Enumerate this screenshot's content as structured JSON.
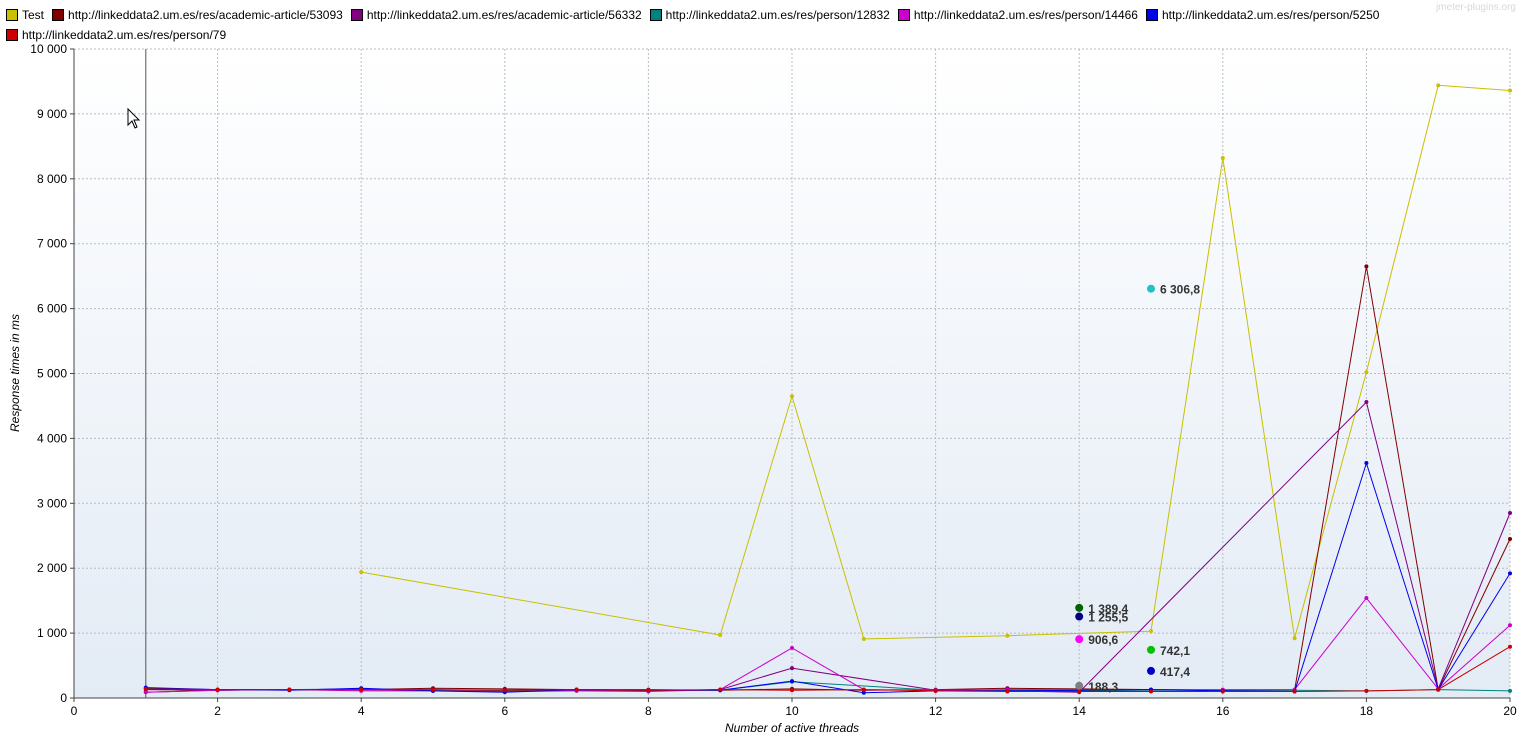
{
  "watermark": "jmeter-plugins.org",
  "chart_data": {
    "type": "line",
    "xlabel": "Number of active threads",
    "ylabel": "Response times in ms",
    "xlim": [
      0,
      20
    ],
    "ylim": [
      0,
      10000
    ],
    "xticks": [
      0,
      2,
      4,
      6,
      8,
      10,
      12,
      14,
      16,
      18,
      20
    ],
    "xtick_labels": [
      "0",
      "2",
      "4",
      "6",
      "8",
      "10",
      "12",
      "14",
      "16",
      "18",
      "20"
    ],
    "yticks": [
      0,
      1000,
      2000,
      3000,
      4000,
      5000,
      6000,
      7000,
      8000,
      9000,
      10000
    ],
    "ytick_labels": [
      "0",
      "1 000",
      "2 000",
      "3 000",
      "4 000",
      "5 000",
      "6 000",
      "7 000",
      "8 000",
      "9 000",
      "10 000"
    ],
    "grid": true,
    "legend_position": "top-left",
    "cursor_x": 1,
    "series": [
      {
        "name": "Test",
        "color": "#c8c000",
        "points": [
          [
            4,
            1940
          ],
          [
            9,
            970
          ],
          [
            10,
            4650
          ],
          [
            11,
            910
          ],
          [
            13,
            960
          ],
          [
            15,
            1030
          ],
          [
            16,
            8320
          ],
          [
            17,
            920
          ],
          [
            18,
            5020
          ],
          [
            19,
            9440
          ],
          [
            20,
            9360
          ]
        ]
      },
      {
        "name": "http://linkeddata2.um.es/res/academic-article/53093",
        "color": "#800000",
        "points": [
          [
            1,
            130
          ],
          [
            2,
            120
          ],
          [
            3,
            130
          ],
          [
            4,
            130
          ],
          [
            5,
            150
          ],
          [
            6,
            140
          ],
          [
            7,
            130
          ],
          [
            8,
            130
          ],
          [
            9,
            120
          ],
          [
            10,
            140
          ],
          [
            11,
            120
          ],
          [
            12,
            130
          ],
          [
            13,
            150
          ],
          [
            14,
            140
          ],
          [
            15,
            130
          ],
          [
            16,
            120
          ],
          [
            17,
            120
          ],
          [
            18,
            6650
          ],
          [
            19,
            130
          ],
          [
            20,
            2450
          ]
        ]
      },
      {
        "name": "http://linkeddata2.um.es/res/academic-article/56332",
        "color": "#800080",
        "points": [
          [
            1,
            90
          ],
          [
            2,
            120
          ],
          [
            3,
            130
          ],
          [
            4,
            130
          ],
          [
            5,
            120
          ],
          [
            6,
            120
          ],
          [
            7,
            120
          ],
          [
            8,
            110
          ],
          [
            9,
            130
          ],
          [
            10,
            460
          ],
          [
            12,
            120
          ],
          [
            13,
            110
          ],
          [
            14,
            90
          ],
          [
            18,
            4560
          ],
          [
            19,
            140
          ],
          [
            20,
            2850
          ]
        ]
      },
      {
        "name": "http://linkeddata2.um.es/res/person/12832",
        "color": "#008080",
        "points": [
          [
            1,
            150
          ],
          [
            2,
            130
          ],
          [
            3,
            130
          ],
          [
            4,
            140
          ],
          [
            5,
            120
          ],
          [
            6,
            110
          ],
          [
            7,
            130
          ],
          [
            8,
            120
          ],
          [
            9,
            120
          ],
          [
            10,
            250
          ],
          [
            12,
            120
          ],
          [
            13,
            120
          ],
          [
            14,
            110
          ],
          [
            15,
            120
          ],
          [
            16,
            120
          ],
          [
            17,
            120
          ],
          [
            18,
            110
          ],
          [
            19,
            130
          ],
          [
            20,
            110
          ]
        ]
      },
      {
        "name": "http://linkeddata2.um.es/res/person/14466",
        "color": "#cc00cc",
        "points": [
          [
            1,
            90
          ],
          [
            2,
            120
          ],
          [
            3,
            130
          ],
          [
            4,
            110
          ],
          [
            5,
            110
          ],
          [
            6,
            100
          ],
          [
            7,
            110
          ],
          [
            8,
            100
          ],
          [
            9,
            130
          ],
          [
            10,
            770
          ],
          [
            11,
            130
          ],
          [
            12,
            120
          ],
          [
            13,
            130
          ],
          [
            14,
            130
          ],
          [
            15,
            130
          ],
          [
            16,
            130
          ],
          [
            17,
            130
          ],
          [
            18,
            1540
          ],
          [
            19,
            140
          ],
          [
            20,
            1120
          ]
        ]
      },
      {
        "name": "http://linkeddata2.um.es/res/person/5250",
        "color": "#0000ee",
        "points": [
          [
            1,
            160
          ],
          [
            2,
            130
          ],
          [
            3,
            120
          ],
          [
            4,
            150
          ],
          [
            5,
            110
          ],
          [
            6,
            90
          ],
          [
            7,
            130
          ],
          [
            8,
            120
          ],
          [
            9,
            120
          ],
          [
            10,
            260
          ],
          [
            11,
            80
          ],
          [
            12,
            110
          ],
          [
            13,
            110
          ],
          [
            14,
            120
          ],
          [
            15,
            130
          ],
          [
            16,
            110
          ],
          [
            17,
            100
          ],
          [
            18,
            3620
          ],
          [
            19,
            130
          ],
          [
            20,
            1920
          ]
        ]
      },
      {
        "name": "http://linkeddata2.um.es/res/person/79",
        "color": "#cc0000",
        "points": [
          [
            1,
            140
          ],
          [
            2,
            130
          ],
          [
            3,
            130
          ],
          [
            4,
            130
          ],
          [
            5,
            130
          ],
          [
            6,
            120
          ],
          [
            7,
            130
          ],
          [
            8,
            120
          ],
          [
            9,
            130
          ],
          [
            10,
            120
          ],
          [
            11,
            130
          ],
          [
            12,
            110
          ],
          [
            13,
            100
          ],
          [
            14,
            100
          ],
          [
            15,
            100
          ],
          [
            16,
            100
          ],
          [
            17,
            100
          ],
          [
            18,
            110
          ],
          [
            19,
            130
          ],
          [
            20,
            790
          ]
        ]
      }
    ],
    "annotations": [
      {
        "x": 15,
        "y": 6306.8,
        "label": "6 306,8",
        "color": "#20c0c8"
      },
      {
        "x": 14,
        "y": 1389.4,
        "label": "1 389,4",
        "color": "#006400"
      },
      {
        "x": 14,
        "y": 1255.5,
        "label": "1 255,5",
        "color": "#000080"
      },
      {
        "x": 14,
        "y": 906.6,
        "label": "906,6",
        "color": "#ff00ff"
      },
      {
        "x": 15,
        "y": 742.1,
        "label": "742,1",
        "color": "#00c000"
      },
      {
        "x": 15,
        "y": 417.4,
        "label": "417,4",
        "color": "#0000cc"
      },
      {
        "x": 14,
        "y": 188.3,
        "label": "188,3",
        "color": "#808080"
      }
    ]
  }
}
